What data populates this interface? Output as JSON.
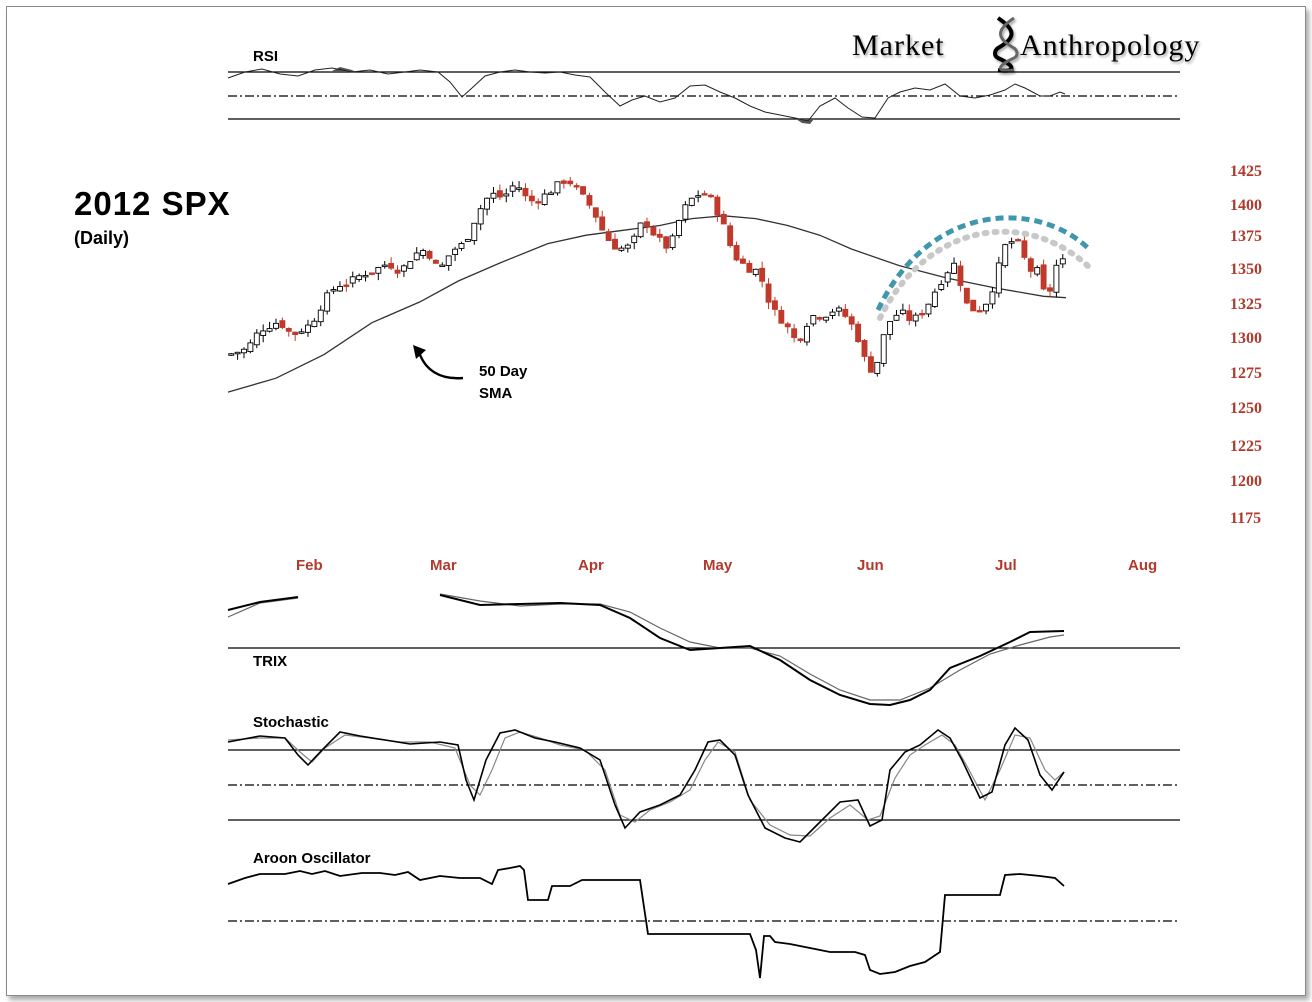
{
  "logo": {
    "part1": "Market",
    "part2": "Anthropology"
  },
  "chart_data": {
    "type": "candlestick",
    "title": "2012 SPX",
    "subtitle": "(Daily)",
    "y_ticks": [
      "1425",
      "1400",
      "1375",
      "1350",
      "1325",
      "1300",
      "1275",
      "1250",
      "1225",
      "1200",
      "1175"
    ],
    "y_tick_values": [
      1425,
      1400,
      1375,
      1350,
      1325,
      1300,
      1275,
      1250,
      1225,
      1200,
      1175
    ],
    "x_ticks": [
      "Feb",
      "Mar",
      "Apr",
      "May",
      "Jun",
      "Jul",
      "Aug"
    ],
    "price_path": [
      [
        0,
        1292
      ],
      [
        6,
        1296
      ],
      [
        10,
        1310
      ],
      [
        16,
        1316
      ],
      [
        20,
        1306
      ],
      [
        26,
        1314
      ],
      [
        30,
        1331
      ],
      [
        34,
        1342
      ],
      [
        38,
        1344
      ],
      [
        42,
        1350
      ],
      [
        46,
        1353
      ],
      [
        50,
        1358
      ],
      [
        54,
        1352
      ],
      [
        58,
        1364
      ],
      [
        62,
        1368
      ],
      [
        66,
        1352
      ],
      [
        70,
        1367
      ],
      [
        74,
        1372
      ],
      [
        78,
        1394
      ],
      [
        82,
        1408
      ],
      [
        86,
        1405
      ],
      [
        90,
        1416
      ],
      [
        94,
        1402
      ],
      [
        98,
        1405
      ],
      [
        102,
        1412
      ],
      [
        106,
        1419
      ],
      [
        110,
        1408
      ],
      [
        114,
        1397
      ],
      [
        118,
        1377
      ],
      [
        122,
        1368
      ],
      [
        126,
        1370
      ],
      [
        130,
        1390
      ],
      [
        134,
        1376
      ],
      [
        138,
        1368
      ],
      [
        142,
        1395
      ],
      [
        146,
        1407
      ],
      [
        150,
        1408
      ],
      [
        154,
        1391
      ],
      [
        158,
        1364
      ],
      [
        162,
        1355
      ],
      [
        166,
        1352
      ],
      [
        170,
        1325
      ],
      [
        174,
        1315
      ],
      [
        178,
        1300
      ],
      [
        182,
        1320
      ],
      [
        186,
        1320
      ],
      [
        190,
        1325
      ],
      [
        194,
        1318
      ],
      [
        198,
        1299
      ],
      [
        200,
        1279
      ],
      [
        203,
        1287
      ],
      [
        206,
        1314
      ],
      [
        210,
        1323
      ],
      [
        214,
        1316
      ],
      [
        218,
        1325
      ],
      [
        222,
        1342
      ],
      [
        226,
        1356
      ],
      [
        228,
        1358
      ],
      [
        230,
        1330
      ],
      [
        234,
        1323
      ],
      [
        238,
        1332
      ],
      [
        240,
        1348
      ],
      [
        243,
        1370
      ],
      [
        246,
        1375
      ],
      [
        248,
        1369
      ],
      [
        250,
        1353
      ],
      [
        253,
        1352
      ],
      [
        256,
        1330
      ],
      [
        259,
        1356
      ],
      [
        261,
        1359
      ]
    ],
    "sma": {
      "label": "50 Day SMA",
      "label_line1": "50 Day",
      "label_line2": "SMA",
      "path": [
        [
          0,
          1265
        ],
        [
          15,
          1275
        ],
        [
          30,
          1292
        ],
        [
          45,
          1315
        ],
        [
          60,
          1330
        ],
        [
          72,
          1345
        ],
        [
          85,
          1358
        ],
        [
          100,
          1372
        ],
        [
          112,
          1378
        ],
        [
          125,
          1382
        ],
        [
          135,
          1385
        ],
        [
          145,
          1390
        ],
        [
          155,
          1392
        ],
        [
          165,
          1390
        ],
        [
          175,
          1385
        ],
        [
          185,
          1378
        ],
        [
          195,
          1368
        ],
        [
          210,
          1356
        ],
        [
          225,
          1347
        ],
        [
          240,
          1340
        ],
        [
          255,
          1334
        ],
        [
          262,
          1333
        ]
      ]
    },
    "indicators": [
      {
        "name": "RSI"
      },
      {
        "name": "TRIX"
      },
      {
        "name": "Stochastic"
      },
      {
        "name": "Aroon Oscillator"
      }
    ]
  }
}
